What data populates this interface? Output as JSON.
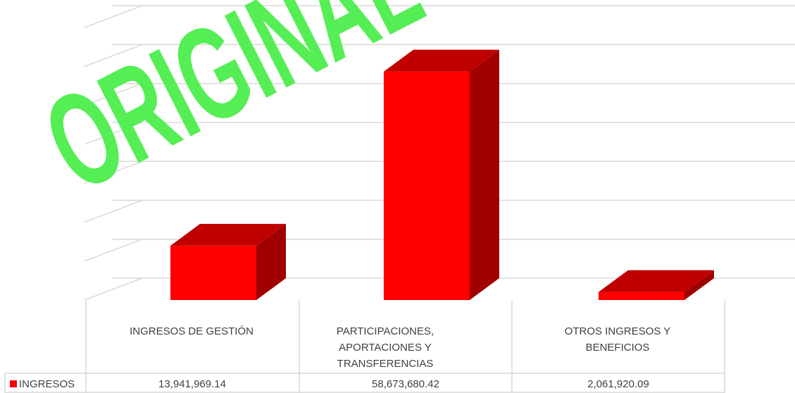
{
  "chart_data": {
    "type": "bar",
    "three_d": true,
    "categories": [
      "INGRESOS DE GESTIÓN",
      "PARTICIPACIONES, APORTACIONES Y TRANSFERENCIAS",
      "OTROS INGRESOS Y BENEFICIOS"
    ],
    "series": [
      {
        "name": "INGRESOS",
        "values": [
          13941969.14,
          58673680.42,
          2061920.09
        ]
      }
    ],
    "value_labels": [
      "13,941,969.14",
      "58,673,680.42",
      "2,061,920.09"
    ],
    "ylim": [
      0,
      70000000
    ],
    "grid": true,
    "data_table": true,
    "legend": "data-table",
    "colors": {
      "bar_front": "#ff0000",
      "bar_top": "#c00000",
      "bar_side": "#a00000",
      "watermark": "#55ee55"
    }
  },
  "watermark": "ORIGINAL"
}
